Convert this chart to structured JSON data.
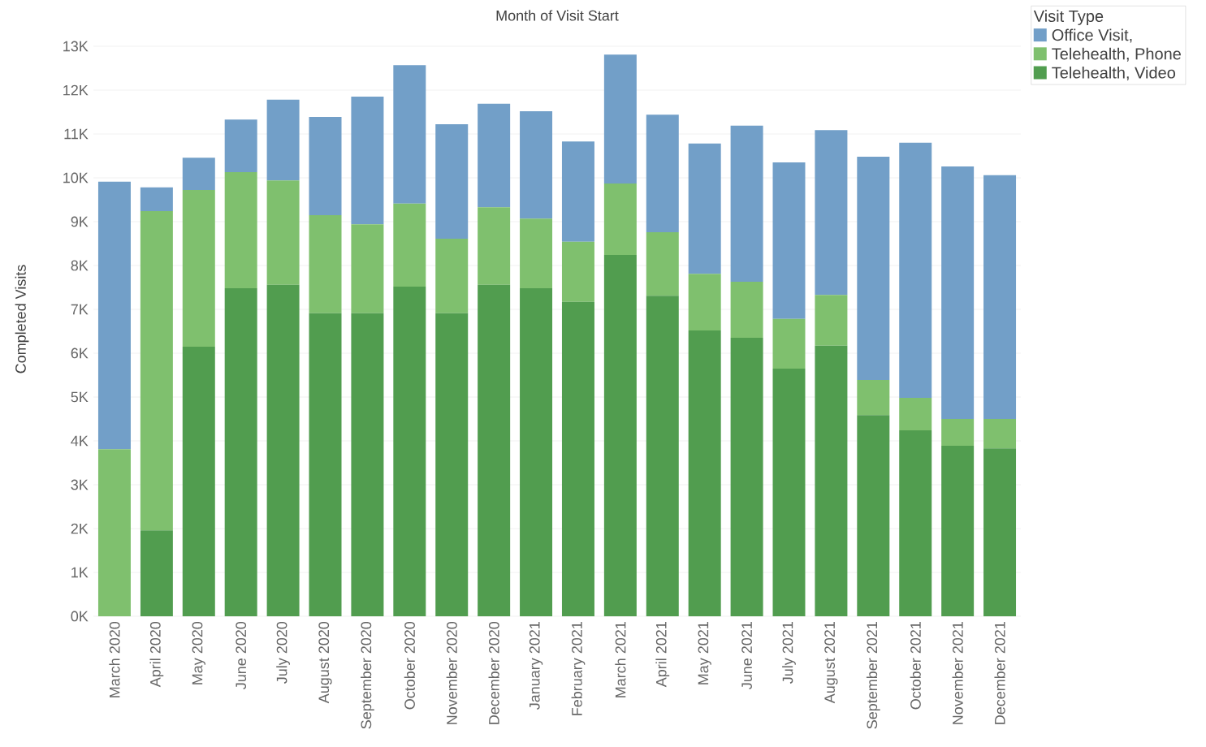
{
  "chart_data": {
    "type": "bar",
    "stacked": true,
    "title": "Month of Visit Start",
    "ylabel": "Completed Visits",
    "legend_title": "Visit Type",
    "legend": "top right",
    "grid": "y",
    "categories": [
      "March 2020",
      "April 2020",
      "May 2020",
      "June 2020",
      "July 2020",
      "August 2020",
      "September 2020",
      "October 2020",
      "November 2020",
      "December 2020",
      "January 2021",
      "February 2021",
      "March 2021",
      "April 2021",
      "May 2021",
      "June 2021",
      "July 2021",
      "August 2021",
      "September 2021",
      "October 2021",
      "November 2021",
      "December 2021"
    ],
    "ylim": [
      0,
      13000
    ],
    "yticks": [
      {
        "value": 0,
        "label": "0K"
      },
      {
        "value": 1000,
        "label": "1K"
      },
      {
        "value": 2000,
        "label": "2K"
      },
      {
        "value": 3000,
        "label": "3K"
      },
      {
        "value": 4000,
        "label": "4K"
      },
      {
        "value": 5000,
        "label": "5K"
      },
      {
        "value": 6000,
        "label": "6K"
      },
      {
        "value": 7000,
        "label": "7K"
      },
      {
        "value": 8000,
        "label": "8K"
      },
      {
        "value": 9000,
        "label": "9K"
      },
      {
        "value": 10000,
        "label": "10K"
      },
      {
        "value": 11000,
        "label": "11K"
      },
      {
        "value": 12000,
        "label": "12K"
      },
      {
        "value": 13000,
        "label": "13K"
      }
    ],
    "series": [
      {
        "name": "Telehealth, Video",
        "color": "#519d4f",
        "values": [
          0,
          1960,
          6150,
          7480,
          7560,
          6910,
          6910,
          7520,
          6910,
          7560,
          7480,
          7170,
          8240,
          7310,
          6520,
          6350,
          5650,
          6170,
          4590,
          4240,
          3890,
          3830
        ]
      },
      {
        "name": "Telehealth, Phone",
        "color": "#7fc06e",
        "values": [
          3810,
          7280,
          3570,
          2650,
          2380,
          2240,
          2030,
          1890,
          1700,
          1770,
          1590,
          1370,
          1630,
          1450,
          1290,
          1280,
          1130,
          1160,
          800,
          740,
          610,
          670
        ]
      },
      {
        "name": "Office Visit,",
        "color": "#729fc8",
        "values": [
          6100,
          540,
          740,
          1200,
          1840,
          2240,
          2910,
          3160,
          2610,
          2360,
          2450,
          2290,
          2940,
          2680,
          2970,
          3560,
          3570,
          3760,
          5090,
          5820,
          5760,
          5560
        ]
      }
    ]
  }
}
